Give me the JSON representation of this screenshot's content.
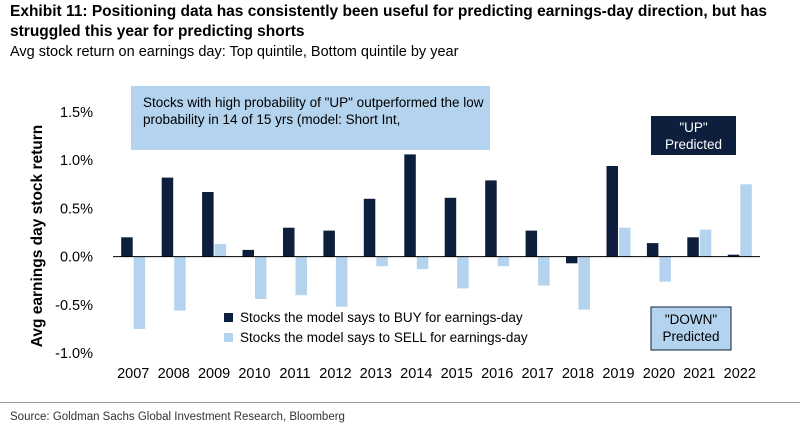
{
  "header": {
    "title": "Exhibit 11: Positioning data has consistently been useful for predicting earnings-day direction, but has struggled this year for predicting shorts",
    "subtitle": "Avg stock return on earnings day: Top quintile, Bottom quintile by year"
  },
  "source": "Source: Goldman Sachs Global Investment Research, Bloomberg",
  "annotations": {
    "top_box": "Stocks with high probability of \"UP\" outperformed the low probability in 14 of 15 yrs (model: Short Int,",
    "up_box_line1": "\"UP\"",
    "up_box_line2": "Predicted",
    "down_box_line1": "\"DOWN\"",
    "down_box_line2": "Predicted"
  },
  "colors": {
    "buy": "#0d1f3c",
    "sell": "#b4d3ee",
    "callout_bg": "#b4d3ee"
  },
  "chart_data": {
    "type": "bar",
    "title": "Avg stock return on earnings day: Top quintile, Bottom quintile by year",
    "xlabel": "",
    "ylabel": "Avg earnings day stock return",
    "categories": [
      "2007",
      "2008",
      "2009",
      "2010",
      "2011",
      "2012",
      "2013",
      "2014",
      "2015",
      "2016",
      "2017",
      "2018",
      "2019",
      "2020",
      "2021",
      "2022"
    ],
    "series": [
      {
        "name": "Stocks the model says to BUY for earnings-day",
        "values": [
          0.2,
          0.82,
          0.67,
          0.07,
          0.3,
          0.27,
          0.6,
          1.06,
          0.61,
          0.79,
          0.27,
          -0.07,
          0.94,
          0.14,
          0.2,
          0.02
        ]
      },
      {
        "name": "Stocks the model says to SELL for earnings-day",
        "values": [
          -0.75,
          -0.56,
          0.13,
          -0.44,
          -0.4,
          -0.52,
          -0.1,
          -0.13,
          -0.33,
          -0.1,
          -0.3,
          -0.55,
          0.3,
          -0.26,
          0.28,
          0.75
        ]
      }
    ],
    "ylim": [
      -1.0,
      1.5
    ],
    "yticks": [
      "-1.0%",
      "-0.5%",
      "0.0%",
      "0.5%",
      "1.0%",
      "1.5%"
    ],
    "ytick_values": [
      -1.0,
      -0.5,
      0.0,
      0.5,
      1.0,
      1.5
    ],
    "grid": false,
    "legend": "bottom-center"
  }
}
